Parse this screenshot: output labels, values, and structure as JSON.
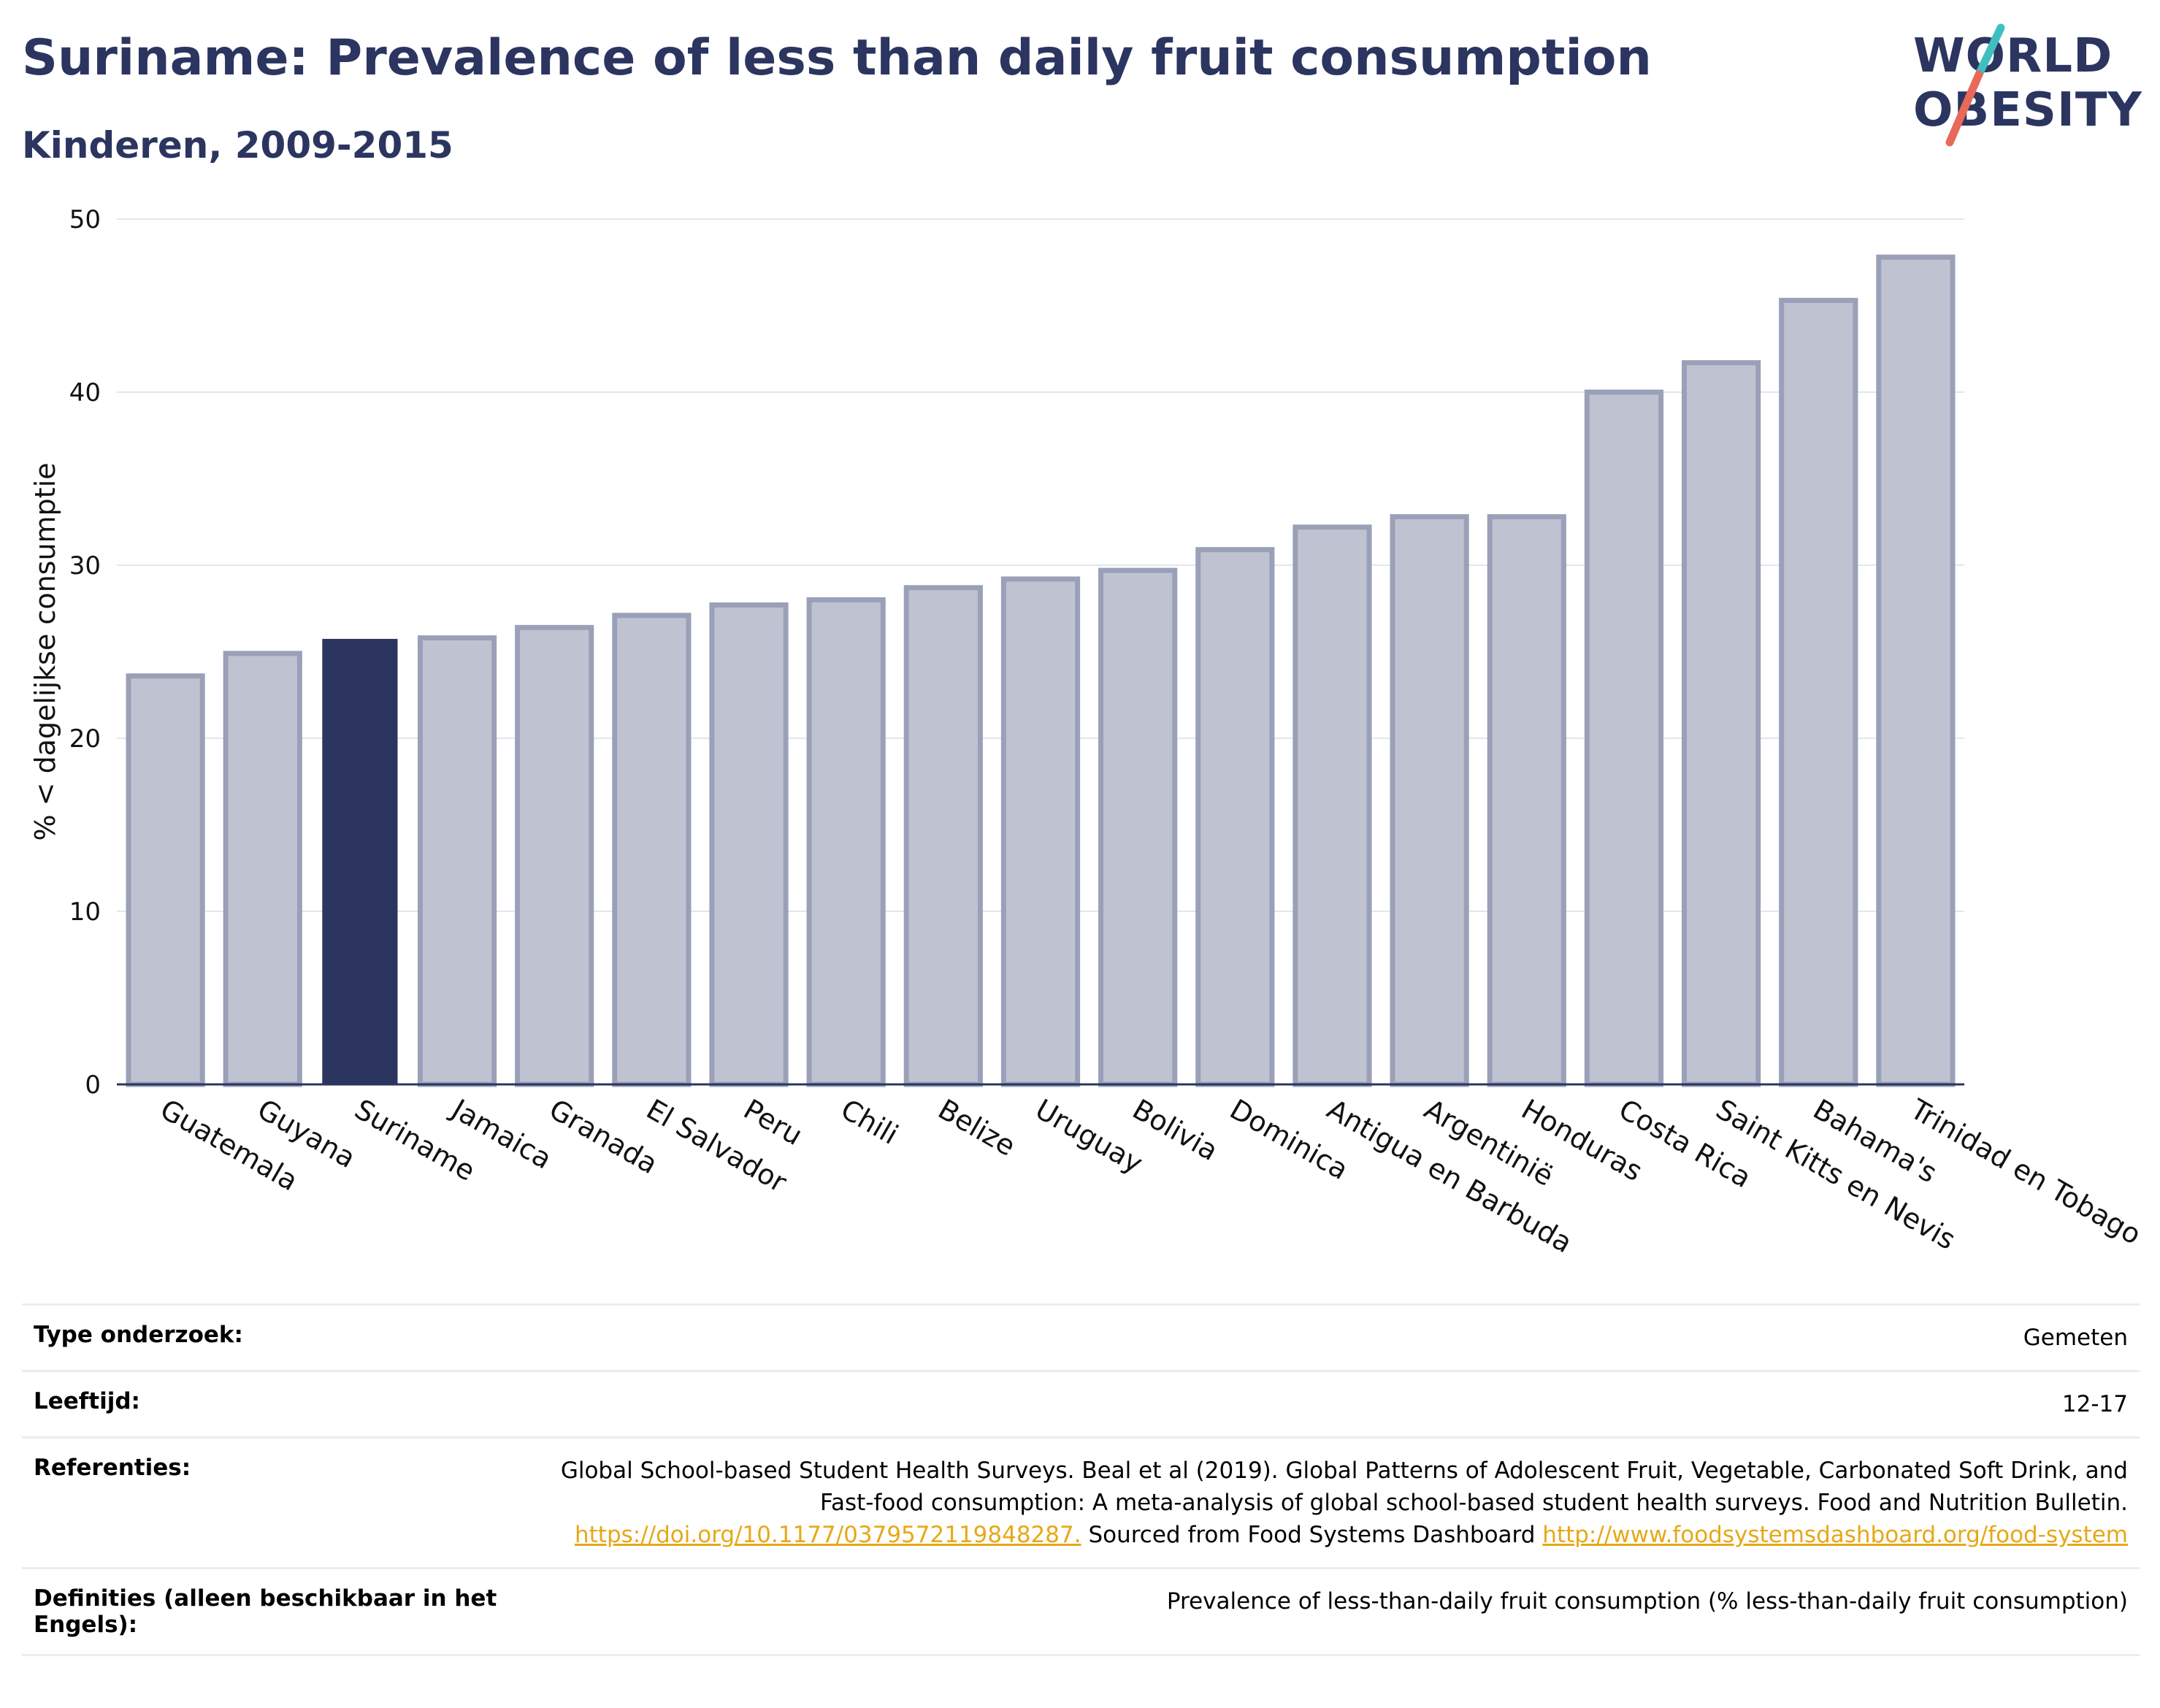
{
  "header": {
    "title": "Suriname: Prevalence of less than daily fruit consumption",
    "subtitle": "Kinderen, 2009-2015"
  },
  "logo": {
    "line1": "WORLD",
    "line2": "OBESITY",
    "colors": {
      "text": "#2b3560",
      "slash_teal": "#3fbfbf",
      "slash_coral": "#e8695a"
    }
  },
  "chart_data": {
    "type": "bar",
    "title": "",
    "xlabel": "",
    "ylabel": "% < dagelijkse consumptie",
    "ylim": [
      0,
      50
    ],
    "yticks": [
      0,
      10,
      20,
      30,
      40,
      50
    ],
    "grid": true,
    "highlight": "Suriname",
    "colors": {
      "default_fill": "#bfc3d1",
      "default_stroke": "#9aa0b8",
      "highlight": "#2b3560"
    },
    "categories": [
      "Guatemala",
      "Guyana",
      "Suriname",
      "Jamaica",
      "Granada",
      "El Salvador",
      "Peru",
      "Chili",
      "Belize",
      "Uruguay",
      "Bolivia",
      "Dominica",
      "Antigua en Barbuda",
      "Argentinië",
      "Honduras",
      "Costa Rica",
      "Saint Kitts en Nevis",
      "Bahama's",
      "Trinidad en Tobago"
    ],
    "values": [
      23.6,
      24.9,
      25.7,
      25.8,
      26.4,
      27.1,
      27.7,
      28.0,
      28.7,
      29.2,
      29.7,
      30.9,
      32.2,
      32.8,
      32.8,
      40.0,
      41.7,
      45.3,
      47.8
    ]
  },
  "info": {
    "rows": [
      {
        "label": "Type onderzoek:",
        "value": "Gemeten"
      },
      {
        "label": "Leeftijd:",
        "value": "12-17"
      },
      {
        "label": "Referenties:",
        "text1": "Global School-based Student Health Surveys. Beal et al (2019). Global Patterns of Adolescent Fruit, Vegetable, Carbonated Soft Drink, and Fast-food consumption: A meta-analysis of global school-based student health surveys. Food and Nutrition Bulletin.",
        "link1": "https://doi.org/10.1177/0379572119848287.",
        "text2": "Sourced from Food Systems Dashboard",
        "link2": "http://www.foodsystemsdashboard.org/food-system"
      },
      {
        "label": "Definities (alleen beschikbaar in het Engels):",
        "value": "Prevalence of less-than-daily fruit consumption (% less-than-daily fruit consumption)"
      }
    ]
  }
}
